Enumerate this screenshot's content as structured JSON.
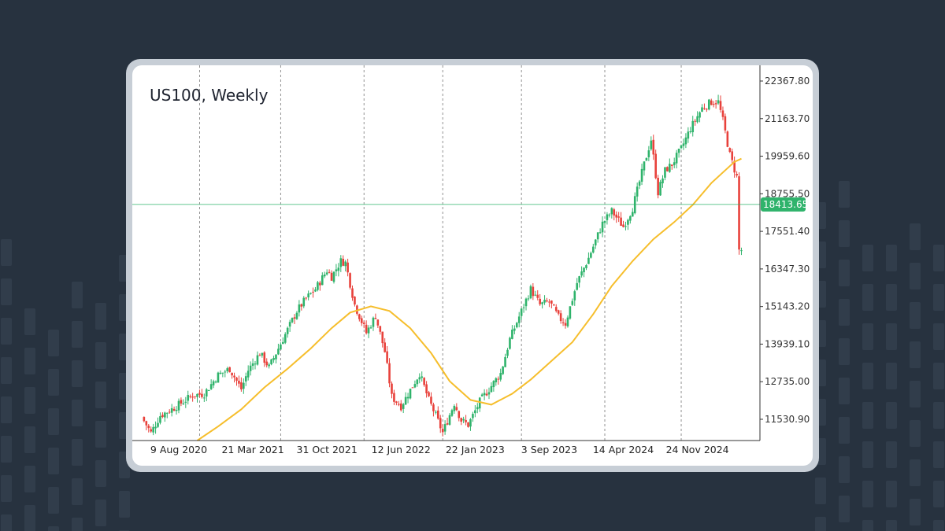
{
  "colors": {
    "page_background": "#27323f",
    "card_frame": "#c7ced6",
    "card_background": "#ffffff",
    "bullish": "#2fb36b",
    "bearish": "#e8413b",
    "moving_average": "#f6be2c",
    "price_line": "#2fb36b",
    "grid_line": "#777777"
  },
  "chart_data": {
    "type": "candlestick",
    "title": "US100, Weekly",
    "y_ticks": [
      "22367.80",
      "21163.70",
      "19959.60",
      "18755.50",
      "17551.40",
      "16347.30",
      "15143.20",
      "13939.10",
      "12735.00",
      "11530.90"
    ],
    "y_tick_values": [
      22367.8,
      21163.7,
      19959.6,
      18755.5,
      17551.4,
      16347.3,
      15143.2,
      13939.1,
      12735.0,
      11530.9
    ],
    "ylim": [
      10850,
      22620
    ],
    "x_ticks": [
      "9 Aug 2020",
      "21 Mar 2021",
      "31 Oct 2021",
      "12 Jun 2022",
      "22 Jan 2023",
      "3 Sep 2023",
      "14 Apr 2024",
      "24 Nov 2024"
    ],
    "x_dates": [
      "2020-08-09",
      "2021-03-21",
      "2021-10-31",
      "2022-06-12",
      "2023-01-22",
      "2023-09-03",
      "2024-04-14",
      "2024-11-24"
    ],
    "vertical_gridlines_at": [
      "2020-10-11",
      "2021-06-13",
      "2022-02-20",
      "2022-10-16",
      "2023-06-11",
      "2024-02-18",
      "2024-10-06"
    ],
    "xlim": [
      "2020-04-12",
      "2025-06-01"
    ],
    "current_price": "18413.65",
    "current_price_value": 18413.65,
    "moving_average": {
      "dates": [
        "2020-10-04",
        "2020-12-06",
        "2021-02-14",
        "2021-04-25",
        "2021-07-04",
        "2021-09-12",
        "2021-11-14",
        "2022-01-09",
        "2022-03-13",
        "2022-05-08",
        "2022-07-10",
        "2022-09-11",
        "2022-11-06",
        "2023-01-08",
        "2023-03-12",
        "2023-05-14",
        "2023-07-09",
        "2023-09-10",
        "2023-11-12",
        "2024-01-14",
        "2024-03-10",
        "2024-05-12",
        "2024-07-14",
        "2024-09-15",
        "2024-11-10",
        "2025-01-05",
        "2025-03-16",
        "2025-04-06"
      ],
      "values": [
        10850,
        11300,
        11850,
        12550,
        13150,
        13800,
        14450,
        14950,
        15150,
        15000,
        14450,
        13650,
        12750,
        12150,
        12000,
        12350,
        12800,
        13400,
        14000,
        14900,
        15800,
        16600,
        17300,
        17850,
        18400,
        19100,
        19780,
        19880
      ]
    },
    "anchors": {
      "dates": [
        "2020-04-26",
        "2020-05-24",
        "2020-06-21",
        "2020-08-02",
        "2020-09-27",
        "2020-11-01",
        "2020-12-13",
        "2021-01-17",
        "2021-02-21",
        "2021-03-14",
        "2021-04-18",
        "2021-05-16",
        "2021-06-27",
        "2021-08-08",
        "2021-09-05",
        "2021-10-03",
        "2021-11-07",
        "2021-11-21",
        "2021-12-19",
        "2022-01-02",
        "2022-01-30",
        "2022-03-06",
        "2022-04-03",
        "2022-05-01",
        "2022-05-22",
        "2022-06-19",
        "2022-07-24",
        "2022-08-14",
        "2022-09-11",
        "2022-10-02",
        "2022-10-23",
        "2022-11-27",
        "2022-12-18",
        "2023-01-08",
        "2023-02-12",
        "2023-03-12",
        "2023-04-16",
        "2023-05-14",
        "2023-06-18",
        "2023-07-16",
        "2023-08-13",
        "2023-09-10",
        "2023-10-08",
        "2023-10-29",
        "2023-12-03",
        "2024-01-07",
        "2024-02-18",
        "2024-03-17",
        "2024-04-21",
        "2024-05-19",
        "2024-06-23",
        "2024-07-14",
        "2024-08-04",
        "2024-08-25",
        "2024-09-15",
        "2024-10-13",
        "2024-11-10",
        "2024-12-15",
        "2025-01-12",
        "2025-02-02",
        "2025-02-16",
        "2025-03-09",
        "2025-03-30",
        "2025-04-06"
      ],
      "values": [
        11600,
        11100,
        11650,
        11900,
        12300,
        12350,
        12950,
        13150,
        12500,
        13100,
        13650,
        13200,
        14100,
        15000,
        15400,
        15700,
        16300,
        16100,
        16600,
        16550,
        15200,
        14300,
        14850,
        13700,
        12250,
        11950,
        12600,
        13000,
        12150,
        11650,
        11100,
        12050,
        11500,
        11350,
        12100,
        12500,
        13000,
        14100,
        15000,
        15700,
        15200,
        15300,
        14800,
        14600,
        15900,
        16700,
        17800,
        18200,
        17700,
        18300,
        19700,
        20500,
        18800,
        19500,
        19700,
        20200,
        20850,
        21500,
        21700,
        21700,
        21100,
        20000,
        19300,
        16950
      ]
    }
  }
}
